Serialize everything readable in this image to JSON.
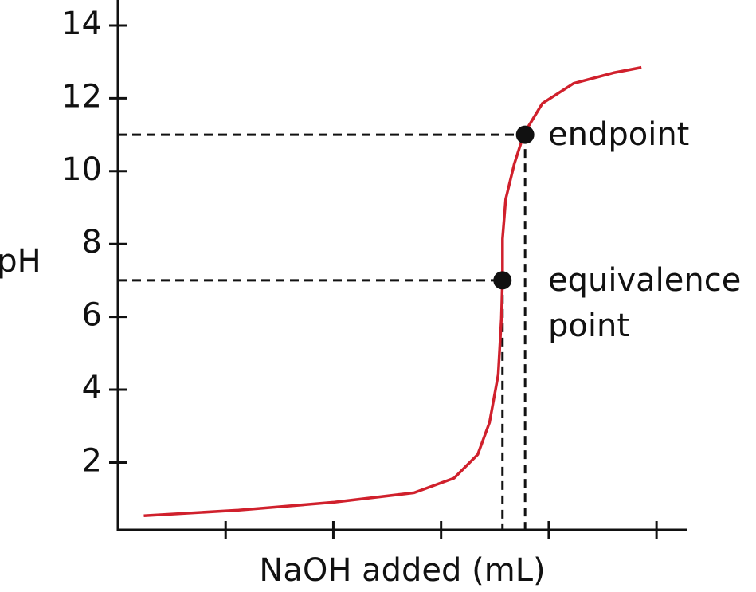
{
  "chart_data": {
    "type": "line",
    "x_label": "NaOH added (mL)",
    "y_label": "pH",
    "xlim": [
      0,
      5.28
    ],
    "ylim": [
      0.15,
      14.7
    ],
    "xticks": [
      1,
      2,
      3,
      4,
      5
    ],
    "xtick_labels": false,
    "yticks": [
      2,
      4,
      6,
      8,
      10,
      12,
      14
    ],
    "series": [
      {
        "color": "#d0202c",
        "x": [
          0.24,
          1.12,
          2.01,
          2.75,
          3.12,
          3.34,
          3.45,
          3.53,
          3.56,
          3.57,
          3.57,
          3.6,
          3.68,
          3.77,
          3.94,
          4.23,
          4.6,
          4.86
        ],
        "values": [
          0.54,
          0.69,
          0.91,
          1.17,
          1.57,
          2.22,
          3.1,
          4.41,
          5.95,
          7.04,
          8.14,
          9.23,
          10.2,
          11.03,
          11.86,
          12.41,
          12.7,
          12.85
        ]
      }
    ],
    "points": [
      {
        "label": [
          "endpoint"
        ],
        "x": 3.78,
        "y": 11
      },
      {
        "label": [
          "equivalence",
          "point"
        ],
        "x": 3.57,
        "y": 7
      }
    ],
    "point_color": "#111111"
  }
}
